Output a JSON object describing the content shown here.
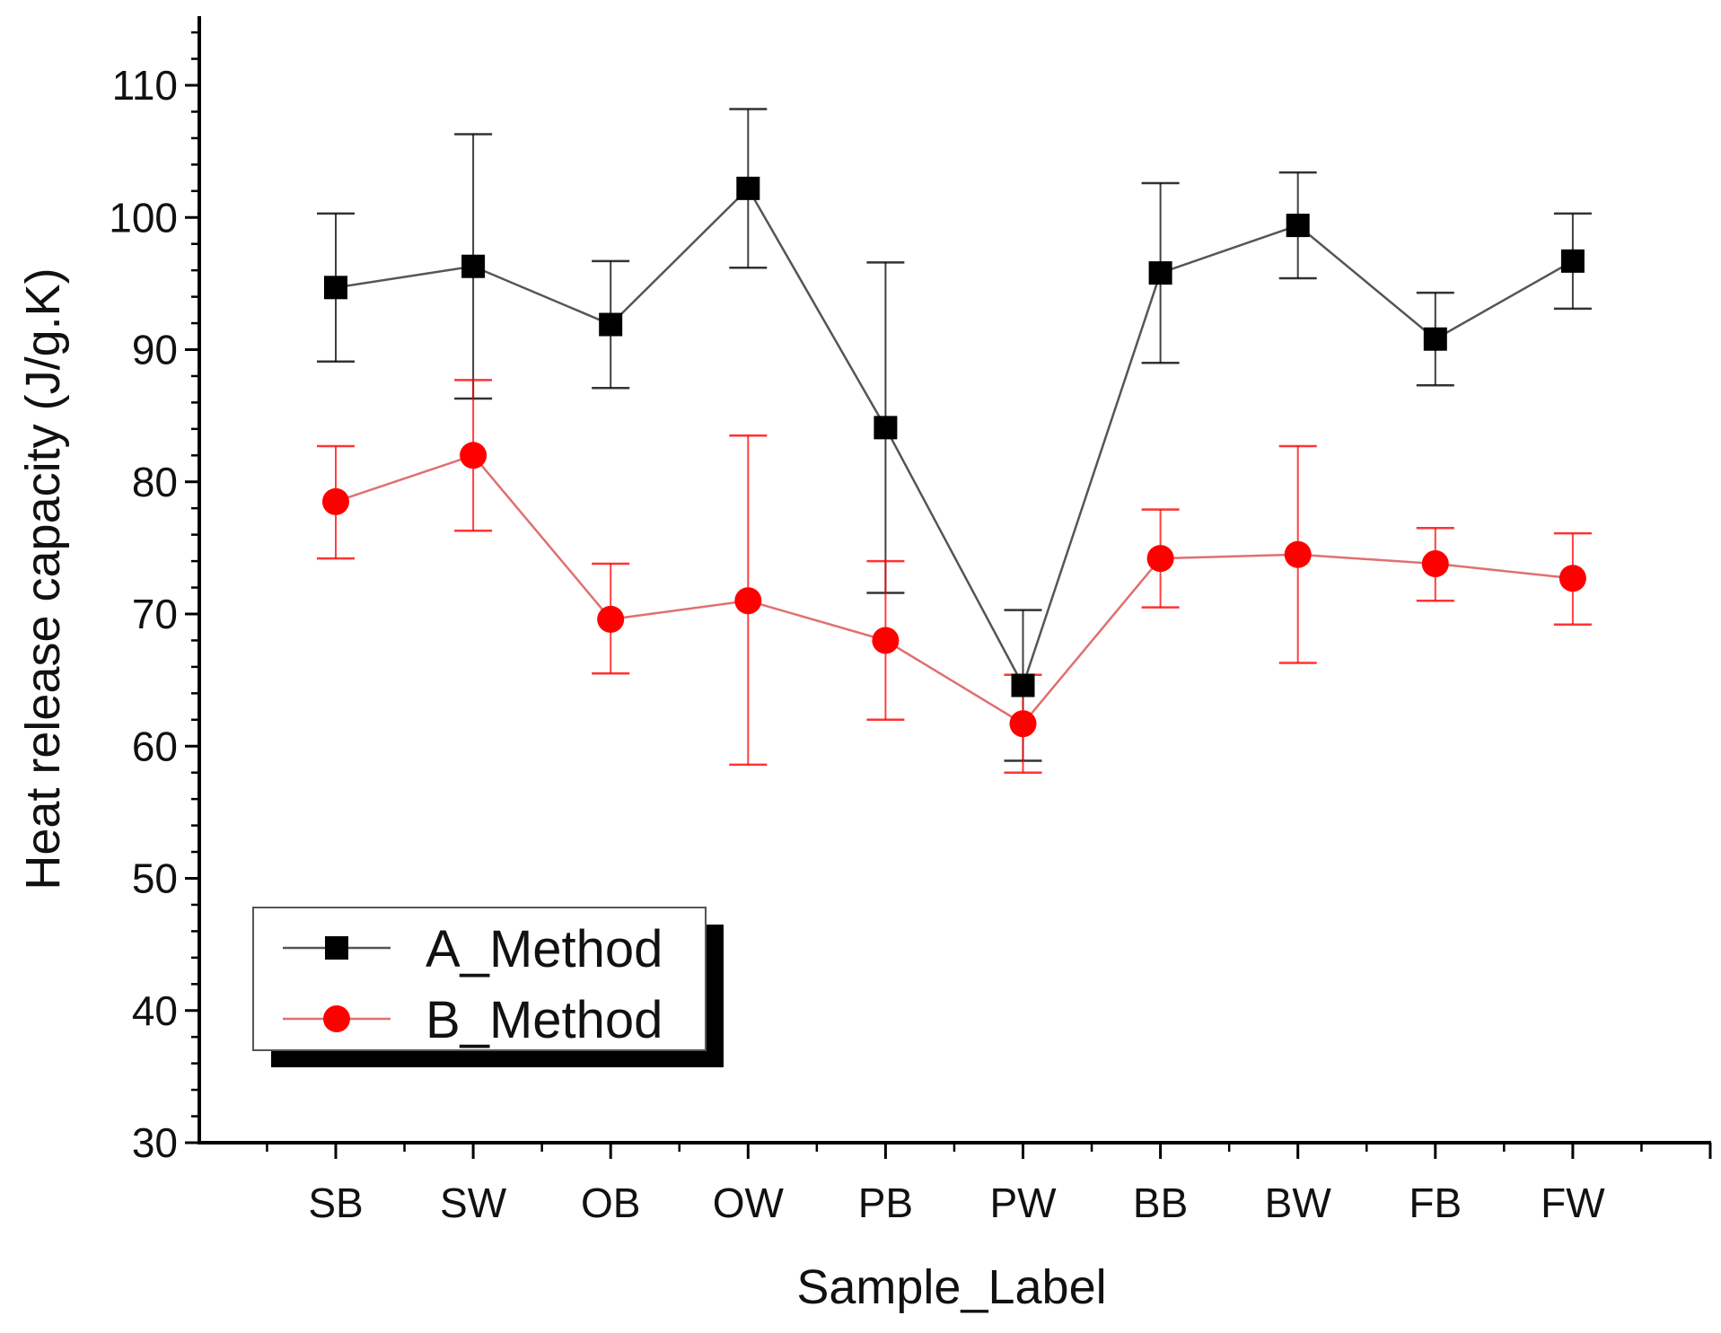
{
  "chart_data": {
    "type": "line",
    "title": "",
    "xlabel": "Sample_Label",
    "ylabel": "Heat release capacity (J/g.K)",
    "categories": [
      "SB",
      "SW",
      "OB",
      "OW",
      "PB",
      "PW",
      "BB",
      "BW",
      "FB",
      "FW"
    ],
    "ylim": [
      30,
      115
    ],
    "yticks": [
      30,
      40,
      50,
      60,
      70,
      80,
      90,
      100,
      110
    ],
    "grid": false,
    "legend_position": "bottom-left",
    "series": [
      {
        "name": "A_Method",
        "color": "#000000",
        "line_color": "#555555",
        "marker": "square",
        "values": [
          94.7,
          96.3,
          91.9,
          102.2,
          84.1,
          64.6,
          95.8,
          99.4,
          90.8,
          96.7
        ],
        "error_high": [
          100.3,
          106.3,
          96.7,
          108.2,
          96.6,
          70.3,
          102.6,
          103.4,
          94.3,
          100.3
        ],
        "error_low": [
          89.1,
          86.3,
          87.1,
          96.2,
          71.6,
          58.9,
          89.0,
          95.4,
          87.3,
          93.1
        ]
      },
      {
        "name": "B_Method",
        "color": "#ff0000",
        "line_color": "#e07070",
        "marker": "circle",
        "values": [
          78.5,
          82.0,
          69.6,
          71.0,
          68.0,
          61.7,
          74.2,
          74.5,
          73.8,
          72.7
        ],
        "error_high": [
          82.7,
          87.7,
          73.8,
          83.5,
          74.0,
          65.4,
          77.9,
          82.7,
          76.5,
          76.1
        ],
        "error_low": [
          74.2,
          76.3,
          65.5,
          58.6,
          62.0,
          58.0,
          70.5,
          66.3,
          71.0,
          69.2
        ]
      }
    ]
  }
}
